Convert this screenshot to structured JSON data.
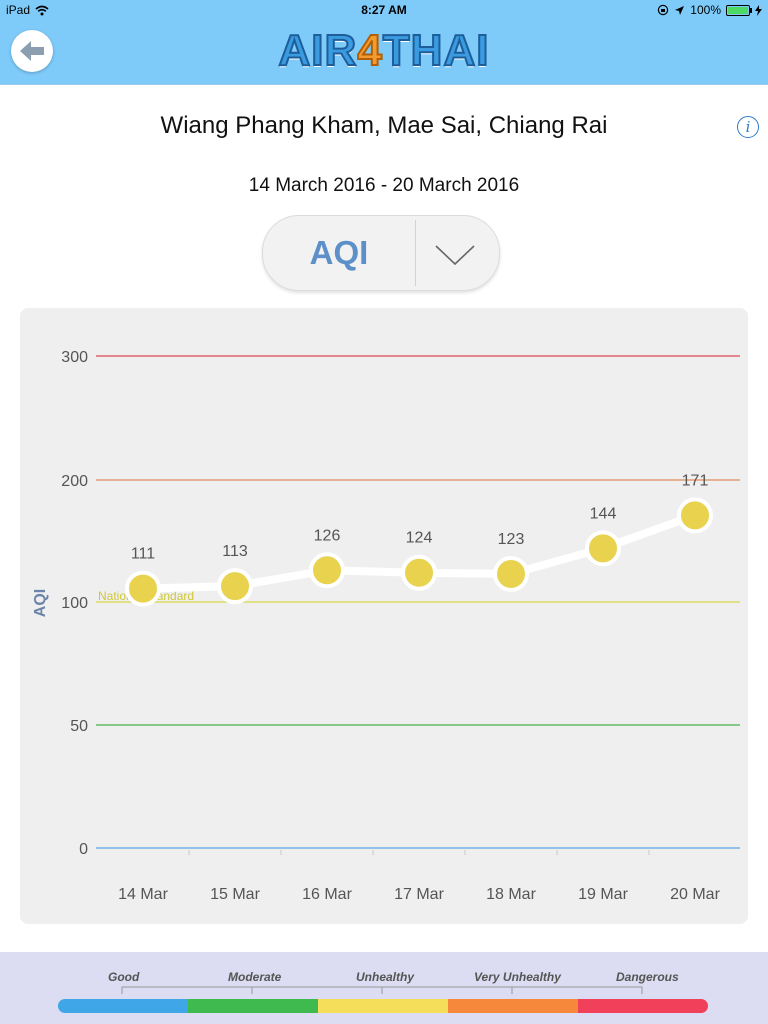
{
  "status_bar": {
    "device": "iPad",
    "time": "8:27 AM",
    "battery": "100%",
    "battery_level": 1.0
  },
  "header": {
    "logo_part1": "AIR",
    "logo_part2": "4",
    "logo_part3": "THAI"
  },
  "station": {
    "location": "Wiang Phang Kham, Mae Sai, Chiang Rai",
    "date_range": "14 March 2016 - 20 March 2016"
  },
  "parameter_selector": {
    "selected": "AQI"
  },
  "chart_data": {
    "type": "line",
    "categories": [
      "14 Mar",
      "15 Mar",
      "16 Mar",
      "17 Mar",
      "18 Mar",
      "19 Mar",
      "20 Mar"
    ],
    "series": [
      {
        "values": [
          111,
          113,
          126,
          124,
          123,
          144,
          171
        ]
      }
    ],
    "ylabel": "AQI",
    "yticks": [
      0,
      50,
      100,
      200,
      300
    ],
    "ylim": [
      0,
      300
    ],
    "reference_lines": [
      {
        "value": 0,
        "color": "#5aa3e0"
      },
      {
        "value": 50,
        "color": "#44b04c"
      },
      {
        "value": 100,
        "color": "#d8d84a",
        "label": "National Standard"
      },
      {
        "value": 200,
        "color": "#e08a5a"
      },
      {
        "value": 300,
        "color": "#e0485a"
      }
    ],
    "point_color": "#e8d24e"
  },
  "legend": {
    "labels": [
      "Good",
      "Moderate",
      "Unhealthy",
      "Very  Unhealthy",
      "Dangerous"
    ],
    "colors": [
      "#3fa6e8",
      "#3fba4f",
      "#f5df5a",
      "#f5883a",
      "#f0405a"
    ]
  }
}
